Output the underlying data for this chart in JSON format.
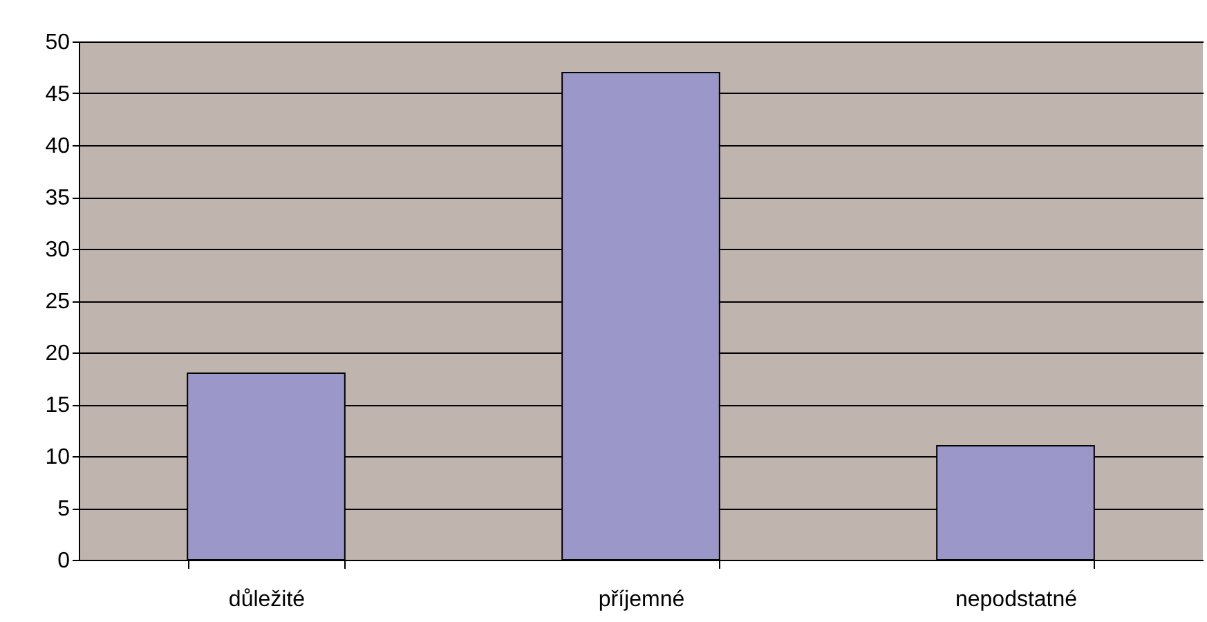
{
  "chart_data": {
    "type": "bar",
    "categories": [
      "důležité",
      "příjemné",
      "nepodstatné"
    ],
    "values": [
      18,
      47,
      11
    ],
    "color": "#9b97c9",
    "ylim": [
      0,
      50
    ],
    "yticks": [
      0,
      5,
      10,
      15,
      20,
      25,
      30,
      35,
      40,
      45,
      50
    ],
    "grid": "y"
  }
}
